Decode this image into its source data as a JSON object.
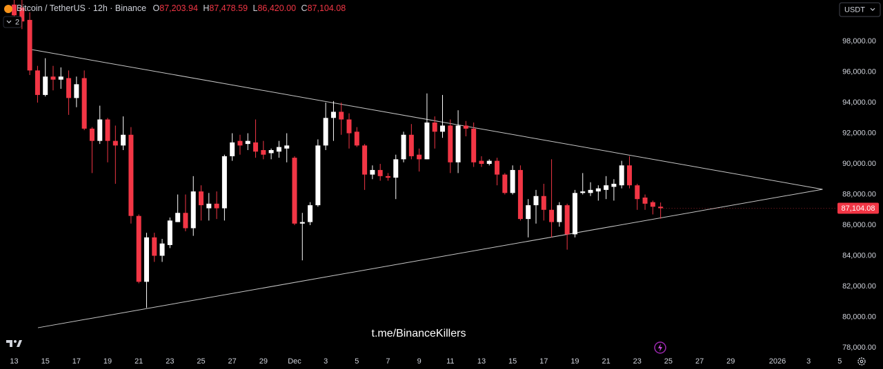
{
  "chart_data": {
    "type": "candlestick",
    "title": "Bitcoin / TetherUS · 12h · Binance",
    "ohlc_header": [
      {
        "label": "O",
        "value": "87,203.94"
      },
      {
        "label": "H",
        "value": "87,478.59"
      },
      {
        "label": "L",
        "value": "86,420.00"
      },
      {
        "label": "C",
        "value": "87,104.08"
      }
    ],
    "indicator_count": "2",
    "currency": "USDT",
    "watermark": "t.me/BinanceKillers",
    "last_price_label": "87,104.08",
    "up_color": "#ffffff",
    "down_color": "#f23645",
    "trendline_color": "#c8c8c8",
    "open": [
      100400,
      100200,
      99400,
      96100,
      94500,
      95700,
      95500,
      95600,
      94300,
      95600,
      92300,
      91500,
      92900,
      91500,
      91200,
      91900,
      86600,
      82300,
      85200,
      84000,
      84700,
      86200,
      86800,
      85800,
      88200,
      87100,
      87400,
      87100,
      90500,
      91500,
      91300,
      91400,
      90900,
      90700,
      90800,
      91000,
      90400,
      86100,
      86200,
      87300,
      91200,
      93000,
      93400,
      92900,
      92100,
      91200,
      89300,
      89600,
      89200,
      89100,
      90300,
      91900,
      90600,
      90300,
      92700,
      92100,
      92500,
      90100,
      92500,
      92300,
      90200,
      90000,
      90200,
      89300,
      88100,
      89600,
      86400,
      87300,
      87900,
      87000,
      86200,
      87300,
      85400,
      88100,
      88100,
      88200,
      88300,
      88500,
      88600,
      89900,
      88600,
      87800,
      87500,
      87203.94
    ],
    "high": [
      101000,
      100700,
      99900,
      96400,
      96900,
      96400,
      96300,
      96100,
      95700,
      96100,
      92400,
      93800,
      93000,
      92500,
      93100,
      92400,
      86700,
      85500,
      85500,
      85100,
      86500,
      88000,
      88000,
      89200,
      88600,
      88100,
      88200,
      90600,
      92000,
      91900,
      92000,
      92900,
      91500,
      91000,
      91500,
      92000,
      90500,
      86800,
      87500,
      91600,
      94000,
      94100,
      94000,
      93300,
      92400,
      91300,
      89900,
      90000,
      89400,
      90600,
      92100,
      92600,
      91000,
      94600,
      93100,
      94500,
      92900,
      93500,
      92800,
      92700,
      90500,
      90300,
      90400,
      89400,
      89900,
      89900,
      87700,
      88300,
      88700,
      90300,
      87500,
      87400,
      88300,
      89400,
      88800,
      88600,
      89200,
      89000,
      90200,
      90500,
      88700,
      88000,
      87600,
      87478.59
    ],
    "low": [
      99200,
      98800,
      95800,
      94000,
      94400,
      94800,
      94900,
      93200,
      93700,
      92200,
      89400,
      91300,
      90100,
      88700,
      90900,
      86100,
      82200,
      80600,
      83600,
      83600,
      84500,
      86200,
      85600,
      85300,
      86300,
      86300,
      86400,
      86300,
      90200,
      90600,
      90900,
      90400,
      90300,
      90300,
      90400,
      90100,
      86000,
      83700,
      86000,
      87200,
      90900,
      91500,
      91900,
      91000,
      91100,
      88300,
      89000,
      88900,
      88900,
      87700,
      90100,
      90300,
      89500,
      90300,
      91000,
      91700,
      89400,
      89400,
      91800,
      89800,
      89800,
      89900,
      88600,
      88000,
      88000,
      86300,
      85200,
      86100,
      86300,
      85200,
      85900,
      84400,
      85200,
      88000,
      87900,
      87600,
      87700,
      87600,
      88400,
      88400,
      87000,
      87000,
      86700,
      86420
    ],
    "close": [
      99700,
      99300,
      96100,
      94500,
      95700,
      95500,
      95700,
      94300,
      95200,
      92300,
      91500,
      92900,
      91500,
      91200,
      91900,
      86600,
      82300,
      85200,
      84000,
      84800,
      86300,
      86800,
      85800,
      88200,
      87300,
      87400,
      87100,
      90500,
      91400,
      91200,
      91500,
      90800,
      90600,
      90900,
      91100,
      91200,
      86100,
      86200,
      87300,
      91200,
      93000,
      93400,
      92900,
      92000,
      91200,
      89300,
      89600,
      89200,
      89100,
      90300,
      91900,
      90500,
      90300,
      92700,
      92100,
      92500,
      90100,
      92500,
      92300,
      90100,
      90000,
      90200,
      89300,
      88100,
      89600,
      86400,
      87300,
      87900,
      87000,
      86200,
      87300,
      85400,
      88100,
      88200,
      88300,
      88400,
      88600,
      88700,
      89900,
      88600,
      87700,
      87400,
      87200,
      87104.08
    ],
    "trendlines": [
      {
        "x": [
          2.3,
          103.8
        ],
        "y": [
          97460,
          88340
        ]
      },
      {
        "x": [
          3.05,
          103.8
        ],
        "y": [
          79300,
          88340
        ]
      }
    ],
    "xlim": [
      -1.82,
      105.53
    ],
    "ylim": [
      77550,
      100700
    ],
    "xticks": [
      {
        "value": 0,
        "label": "13"
      },
      {
        "value": 4,
        "label": "15"
      },
      {
        "value": 8,
        "label": "17"
      },
      {
        "value": 12,
        "label": "19"
      },
      {
        "value": 16,
        "label": "21"
      },
      {
        "value": 20,
        "label": "23"
      },
      {
        "value": 24,
        "label": "25"
      },
      {
        "value": 28,
        "label": "27"
      },
      {
        "value": 32,
        "label": "29"
      },
      {
        "value": 36,
        "label": "Dec"
      },
      {
        "value": 40,
        "label": "3"
      },
      {
        "value": 44,
        "label": "5"
      },
      {
        "value": 48,
        "label": "7"
      },
      {
        "value": 52,
        "label": "9"
      },
      {
        "value": 56,
        "label": "11"
      },
      {
        "value": 60,
        "label": "13"
      },
      {
        "value": 64,
        "label": "15"
      },
      {
        "value": 68,
        "label": "17"
      },
      {
        "value": 72,
        "label": "19"
      },
      {
        "value": 76,
        "label": "21"
      },
      {
        "value": 80,
        "label": "23"
      },
      {
        "value": 84,
        "label": "25"
      },
      {
        "value": 88,
        "label": "27"
      },
      {
        "value": 92,
        "label": "29"
      },
      {
        "value": 98,
        "label": "2026"
      },
      {
        "value": 102,
        "label": "3"
      },
      {
        "value": 106,
        "label": "5"
      }
    ],
    "yticks": [
      {
        "value": 78000,
        "label": "78,000.00"
      },
      {
        "value": 80000,
        "label": "80,000.00"
      },
      {
        "value": 82000,
        "label": "82,000.00"
      },
      {
        "value": 84000,
        "label": "84,000.00"
      },
      {
        "value": 86000,
        "label": "86,000.00"
      },
      {
        "value": 88000,
        "label": "88,000.00"
      },
      {
        "value": 90000,
        "label": "90,000.00"
      },
      {
        "value": 92000,
        "label": "92,000.00"
      },
      {
        "value": 94000,
        "label": "94,000.00"
      },
      {
        "value": 96000,
        "label": "96,000.00"
      },
      {
        "value": 98000,
        "label": "98,000.00"
      }
    ]
  }
}
